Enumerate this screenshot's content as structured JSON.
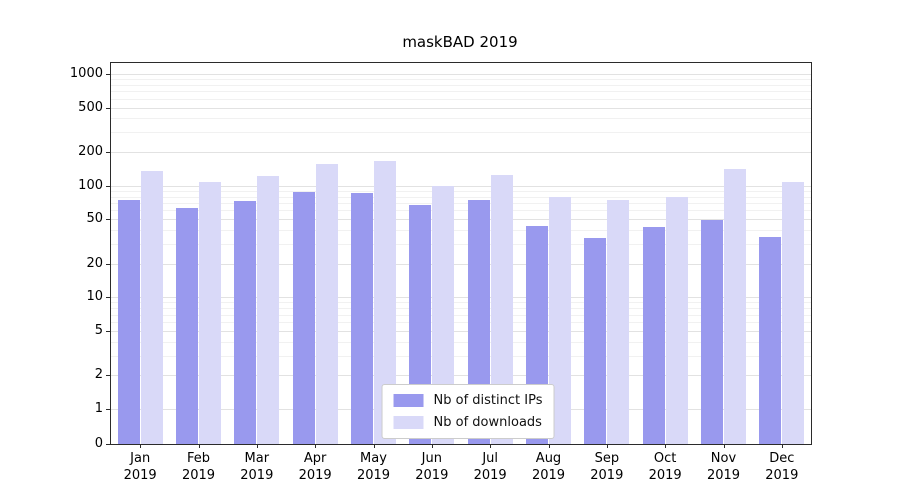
{
  "chart_data": {
    "type": "bar",
    "title": "maskBAD 2019",
    "categories": [
      "Jan",
      "Feb",
      "Mar",
      "Apr",
      "May",
      "Jun",
      "Jul",
      "Aug",
      "Sep",
      "Oct",
      "Nov",
      "Dec"
    ],
    "year": "2019",
    "series": [
      {
        "name": "Nb of distinct IPs",
        "color": "#9999ee",
        "values": [
          75,
          63,
          73,
          87,
          86,
          67,
          74,
          44,
          34,
          43,
          49,
          35
        ]
      },
      {
        "name": "Nb of downloads",
        "color": "#d9d9f8",
        "values": [
          135,
          108,
          121,
          158,
          165,
          100,
          125,
          80,
          75,
          80,
          140,
          108
        ]
      }
    ],
    "yticks": [
      0,
      1,
      2,
      5,
      10,
      20,
      50,
      100,
      200,
      500,
      1000
    ],
    "ylim": [
      0,
      1000
    ],
    "yscale": "symlog",
    "grid": true,
    "legend_position": "lower center"
  }
}
